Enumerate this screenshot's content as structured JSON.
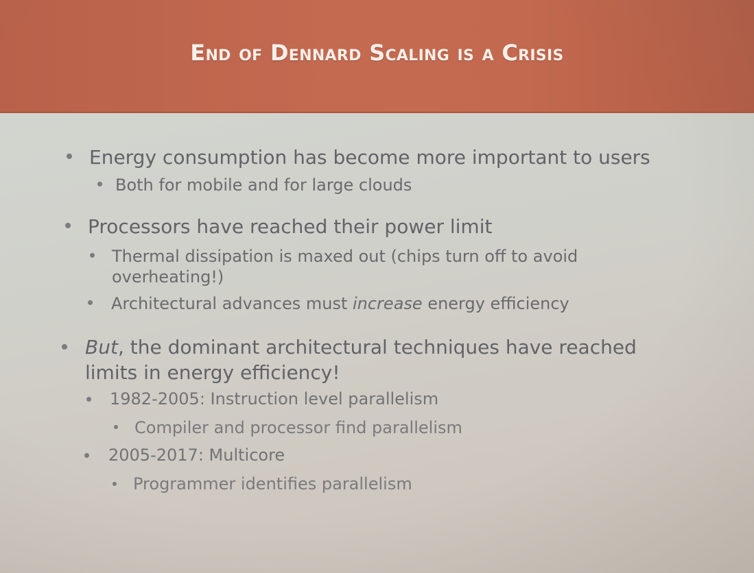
{
  "slide": {
    "title": "End of Dennard Scaling is a Crisis",
    "b1": {
      "text": "Energy consumption has become more important to users",
      "sub1": "Both for mobile and for large clouds"
    },
    "b2": {
      "text": "Processors have reached their power limit",
      "sub1_line1": "Thermal dissipation is maxed out (chips turn off to avoid",
      "sub1_line2": "overheating!)",
      "sub2_pre": "Architectural advances must ",
      "sub2_emph": "increase",
      "sub2_post": " energy efficiency"
    },
    "b3": {
      "line1_emph": "But",
      "line1_rest": ", the dominant architectural techniques have reached",
      "line2": "limits in energy efficiency!",
      "sub1": "1982-2005: Instruction level parallelism",
      "sub1_sub": "Compiler and processor find parallelism",
      "sub2": "2005-2017: Multicore",
      "sub2_sub": "Programmer identifies parallelism"
    }
  }
}
